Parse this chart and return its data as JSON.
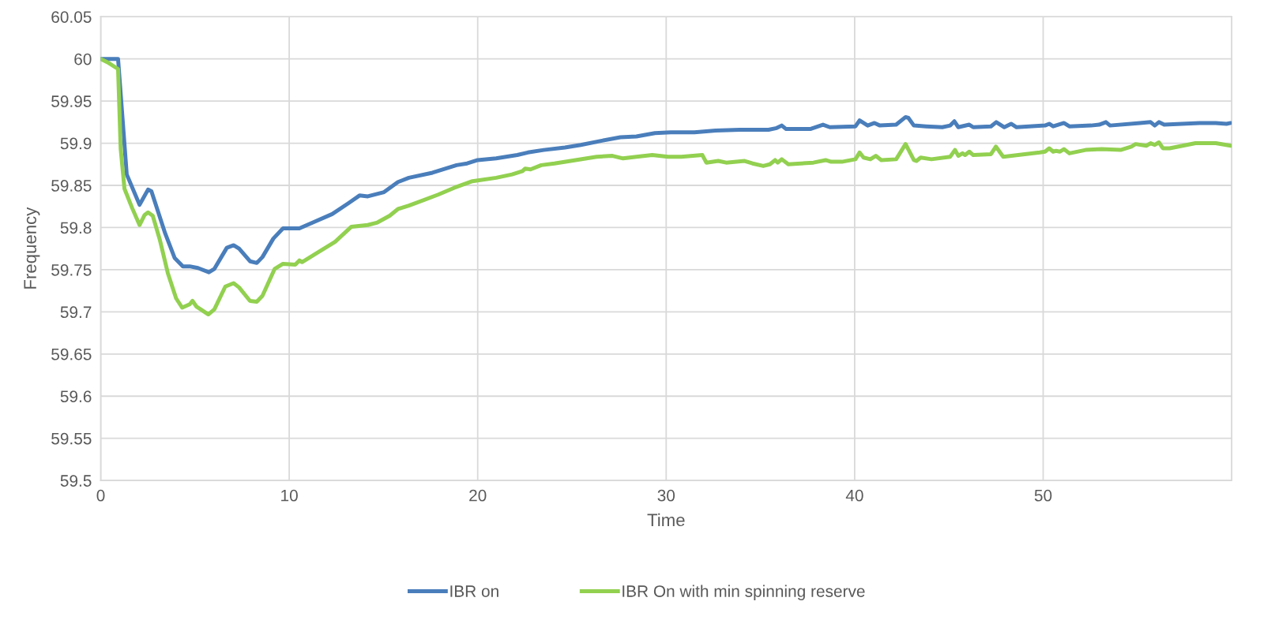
{
  "chart_data": {
    "type": "line",
    "xlabel": "Time",
    "ylabel": "Frequency",
    "xlim": [
      0,
      60
    ],
    "xticks": [
      0,
      10,
      20,
      30,
      40,
      50
    ],
    "ylim": [
      59.5,
      60.05
    ],
    "yticks": [
      59.5,
      59.55,
      59.6,
      59.65,
      59.7,
      59.75,
      59.8,
      59.85,
      59.9,
      59.95,
      {
        "value": 60,
        "label": "60"
      },
      60.05
    ],
    "grid": true,
    "legend": "bottom",
    "marker": "none",
    "line_style": "solid",
    "series": [
      {
        "name": "IBR on",
        "color": "#4a7ebb",
        "x": [
          0,
          0.92,
          1.38,
          2.06,
          2.51,
          2.69,
          3.42,
          3.92,
          4.36,
          4.72,
          5.16,
          5.74,
          6.03,
          6.69,
          7.05,
          7.34,
          7.92,
          8.28,
          8.58,
          9.16,
          9.67,
          10.54,
          11.26,
          12.28,
          13.15,
          13.73,
          14.17,
          15.03,
          15.77,
          16.35,
          17.6,
          18.88,
          19.44,
          20,
          20.98,
          22.1,
          22.66,
          23.5,
          24.63,
          25.47,
          26.59,
          27.57,
          28.42,
          29.4,
          30.24,
          31.5,
          32.62,
          33.9,
          35.43,
          35.86,
          36.13,
          36.35,
          37.67,
          38.32,
          38.68,
          40.04,
          40.26,
          40.69,
          41.05,
          41.34,
          42.2,
          42.7,
          42.85,
          43.14,
          43.79,
          44.65,
          45.07,
          45.29,
          45.5,
          46.08,
          46.29,
          47.23,
          47.51,
          47.94,
          48.3,
          48.59,
          50.1,
          50.32,
          50.53,
          51.1,
          51.39,
          52.54,
          52.97,
          53.33,
          53.55,
          55.13,
          55.7,
          55.92,
          56.14,
          56.42,
          58.29,
          59.16,
          59.73,
          59.95
        ],
        "values": [
          60,
          60,
          59.863,
          59.827,
          59.845,
          59.843,
          59.793,
          59.764,
          59.754,
          59.754,
          59.752,
          59.747,
          59.751,
          59.776,
          59.779,
          59.775,
          59.76,
          59.758,
          59.765,
          59.787,
          59.799,
          59.799,
          59.806,
          59.816,
          59.829,
          59.838,
          59.837,
          59.842,
          59.854,
          59.859,
          59.865,
          59.874,
          59.876,
          59.88,
          59.882,
          59.886,
          59.889,
          59.892,
          59.895,
          59.898,
          59.903,
          59.907,
          59.908,
          59.912,
          59.913,
          59.913,
          59.915,
          59.916,
          59.916,
          59.918,
          59.921,
          59.917,
          59.917,
          59.922,
          59.919,
          59.92,
          59.927,
          59.921,
          59.924,
          59.921,
          59.922,
          59.931,
          59.93,
          59.921,
          59.92,
          59.919,
          59.921,
          59.926,
          59.919,
          59.922,
          59.919,
          59.92,
          59.925,
          59.919,
          59.923,
          59.919,
          59.921,
          59.923,
          59.92,
          59.924,
          59.92,
          59.921,
          59.922,
          59.925,
          59.921,
          59.924,
          59.925,
          59.921,
          59.925,
          59.922,
          59.924,
          59.924,
          59.923,
          59.924
        ]
      },
      {
        "name": "IBR On with min spinning reserve",
        "color": "#92d050",
        "x": [
          0,
          0.36,
          0.92,
          1.06,
          1.26,
          1.67,
          2.06,
          2.33,
          2.51,
          2.76,
          3.13,
          3.56,
          4.0,
          4.32,
          4.72,
          4.87,
          5.09,
          5.3,
          5.71,
          6.03,
          6.61,
          7.05,
          7.34,
          7.92,
          8.28,
          8.58,
          9.23,
          9.67,
          10.32,
          10.54,
          10.68,
          11.56,
          12.43,
          13.3,
          14.17,
          14.68,
          15.33,
          15.77,
          16.35,
          17.9,
          18.74,
          19.72,
          20.98,
          21.82,
          22.38,
          22.52,
          22.8,
          23.37,
          24.07,
          25.19,
          26.31,
          27.15,
          27.71,
          28.42,
          29.26,
          30.1,
          30.8,
          31.92,
          32.13,
          32.76,
          33.18,
          34.16,
          34.58,
          35.15,
          35.5,
          35.78,
          35.92,
          36.13,
          36.48,
          37.81,
          38.46,
          38.75,
          39.32,
          40.04,
          40.26,
          40.47,
          40.83,
          41.12,
          41.41,
          42.2,
          42.7,
          43.14,
          43.28,
          43.5,
          44.07,
          45.07,
          45.32,
          45.5,
          45.72,
          45.86,
          46.08,
          46.29,
          47.23,
          47.49,
          47.88,
          48.67,
          49.82,
          50.1,
          50.32,
          50.53,
          50.68,
          50.89,
          51.1,
          51.39,
          52.25,
          53.1,
          54.11,
          54.68,
          54.9,
          55.47,
          55.7,
          55.92,
          56.14,
          56.35,
          56.71,
          58.08,
          59.16,
          59.95
        ],
        "values": [
          60,
          59.996,
          59.988,
          59.893,
          59.846,
          59.823,
          59.803,
          59.815,
          59.818,
          59.814,
          59.786,
          59.746,
          59.716,
          59.705,
          59.709,
          59.713,
          59.706,
          59.703,
          59.697,
          59.703,
          59.73,
          59.734,
          59.729,
          59.713,
          59.712,
          59.719,
          59.751,
          59.757,
          59.756,
          59.761,
          59.759,
          59.771,
          59.783,
          59.801,
          59.803,
          59.806,
          59.814,
          59.822,
          59.826,
          59.839,
          59.847,
          59.855,
          59.859,
          59.863,
          59.867,
          59.87,
          59.869,
          59.874,
          59.876,
          59.88,
          59.884,
          59.885,
          59.882,
          59.884,
          59.886,
          59.884,
          59.884,
          59.886,
          59.877,
          59.879,
          59.877,
          59.879,
          59.876,
          59.873,
          59.875,
          59.88,
          59.877,
          59.881,
          59.875,
          59.877,
          59.88,
          59.878,
          59.878,
          59.881,
          59.889,
          59.883,
          59.881,
          59.885,
          59.88,
          59.881,
          59.899,
          59.88,
          59.879,
          59.883,
          59.881,
          59.884,
          59.892,
          59.885,
          59.888,
          59.886,
          59.89,
          59.886,
          59.887,
          59.896,
          59.884,
          59.886,
          59.889,
          59.89,
          59.894,
          59.89,
          59.891,
          59.89,
          59.893,
          59.888,
          59.892,
          59.893,
          59.892,
          59.896,
          59.899,
          59.897,
          59.9,
          59.898,
          59.901,
          59.894,
          59.894,
          59.9,
          59.9,
          59.897
        ]
      }
    ]
  }
}
